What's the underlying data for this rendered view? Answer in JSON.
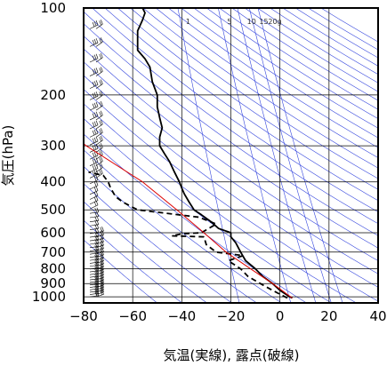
{
  "chart_data": {
    "type": "line",
    "title": "",
    "xlabel": "気温(実線), 露点(破線)",
    "ylabel": "気圧(hPa)",
    "xlim": [
      -80,
      40
    ],
    "ylim": [
      1050,
      100
    ],
    "y_scale": "log",
    "x_ticks": [
      "−80",
      "−60",
      "−40",
      "−20",
      "0",
      "20",
      "40"
    ],
    "x_tick_values": [
      -80,
      -60,
      -40,
      -20,
      0,
      20,
      40
    ],
    "y_ticks": [
      "100",
      "200",
      "300",
      "400",
      "500",
      "600",
      "700",
      "800",
      "900",
      "1000"
    ],
    "y_tick_values": [
      100,
      200,
      300,
      400,
      500,
      600,
      700,
      800,
      900,
      1000
    ],
    "mixing_ratio_labels": [
      "1",
      "5",
      "10",
      "15",
      "20g"
    ],
    "mixing_ratio_values": [
      1,
      5,
      10,
      15,
      20
    ],
    "grid": true,
    "colors": {
      "temperature": "#000000",
      "dewpoint": "#000000",
      "parcel": "#dd0000",
      "adiabats": "#3344dd",
      "grid": "#000000"
    },
    "series": [
      {
        "key": "temperature",
        "style": "solid",
        "points": [
          [
            1010,
            5
          ],
          [
            1000,
            4
          ],
          [
            950,
            0
          ],
          [
            900,
            -3
          ],
          [
            850,
            -7
          ],
          [
            800,
            -10
          ],
          [
            750,
            -14
          ],
          [
            700,
            -16
          ],
          [
            650,
            -18
          ],
          [
            620,
            -20
          ],
          [
            600,
            -20
          ],
          [
            580,
            -25
          ],
          [
            550,
            -28
          ],
          [
            520,
            -32
          ],
          [
            500,
            -35
          ],
          [
            470,
            -37
          ],
          [
            440,
            -39
          ],
          [
            420,
            -40
          ],
          [
            400,
            -41
          ],
          [
            370,
            -43
          ],
          [
            340,
            -45
          ],
          [
            320,
            -47
          ],
          [
            300,
            -49
          ],
          [
            280,
            -49
          ],
          [
            260,
            -48
          ],
          [
            240,
            -49
          ],
          [
            220,
            -50
          ],
          [
            200,
            -50
          ],
          [
            180,
            -52
          ],
          [
            160,
            -53
          ],
          [
            150,
            -55
          ],
          [
            140,
            -58
          ],
          [
            130,
            -58
          ],
          [
            120,
            -58
          ],
          [
            110,
            -56
          ],
          [
            104,
            -55
          ],
          [
            100,
            -56
          ]
        ]
      },
      {
        "key": "dewpoint",
        "style": "dashed",
        "points": [
          [
            1010,
            3
          ],
          [
            1000,
            2
          ],
          [
            950,
            -3
          ],
          [
            900,
            -8
          ],
          [
            850,
            -13
          ],
          [
            800,
            -16
          ],
          [
            750,
            -21
          ],
          [
            720,
            -15
          ],
          [
            700,
            -26
          ],
          [
            660,
            -30
          ],
          [
            620,
            -31
          ],
          [
            615,
            -44
          ],
          [
            605,
            -40
          ],
          [
            600,
            -32
          ],
          [
            560,
            -26
          ],
          [
            530,
            -33
          ],
          [
            500,
            -58
          ],
          [
            490,
            -60
          ],
          [
            470,
            -64
          ],
          [
            450,
            -67
          ],
          [
            420,
            -69
          ],
          [
            400,
            -70
          ],
          [
            380,
            -72
          ],
          [
            370,
            -78
          ]
        ]
      },
      {
        "key": "parcel",
        "style": "solid",
        "points": [
          [
            1010,
            5
          ],
          [
            900,
            -3
          ],
          [
            800,
            -12
          ],
          [
            700,
            -22
          ],
          [
            600,
            -31
          ],
          [
            500,
            -42
          ],
          [
            400,
            -56
          ],
          [
            300,
            -79
          ],
          [
            270,
            -85
          ]
        ]
      }
    ],
    "wind_barbs_left": "left margin column, 1000–100 hPa",
    "wind_barbs_right": "right of left column, 1000–100 hPa"
  }
}
